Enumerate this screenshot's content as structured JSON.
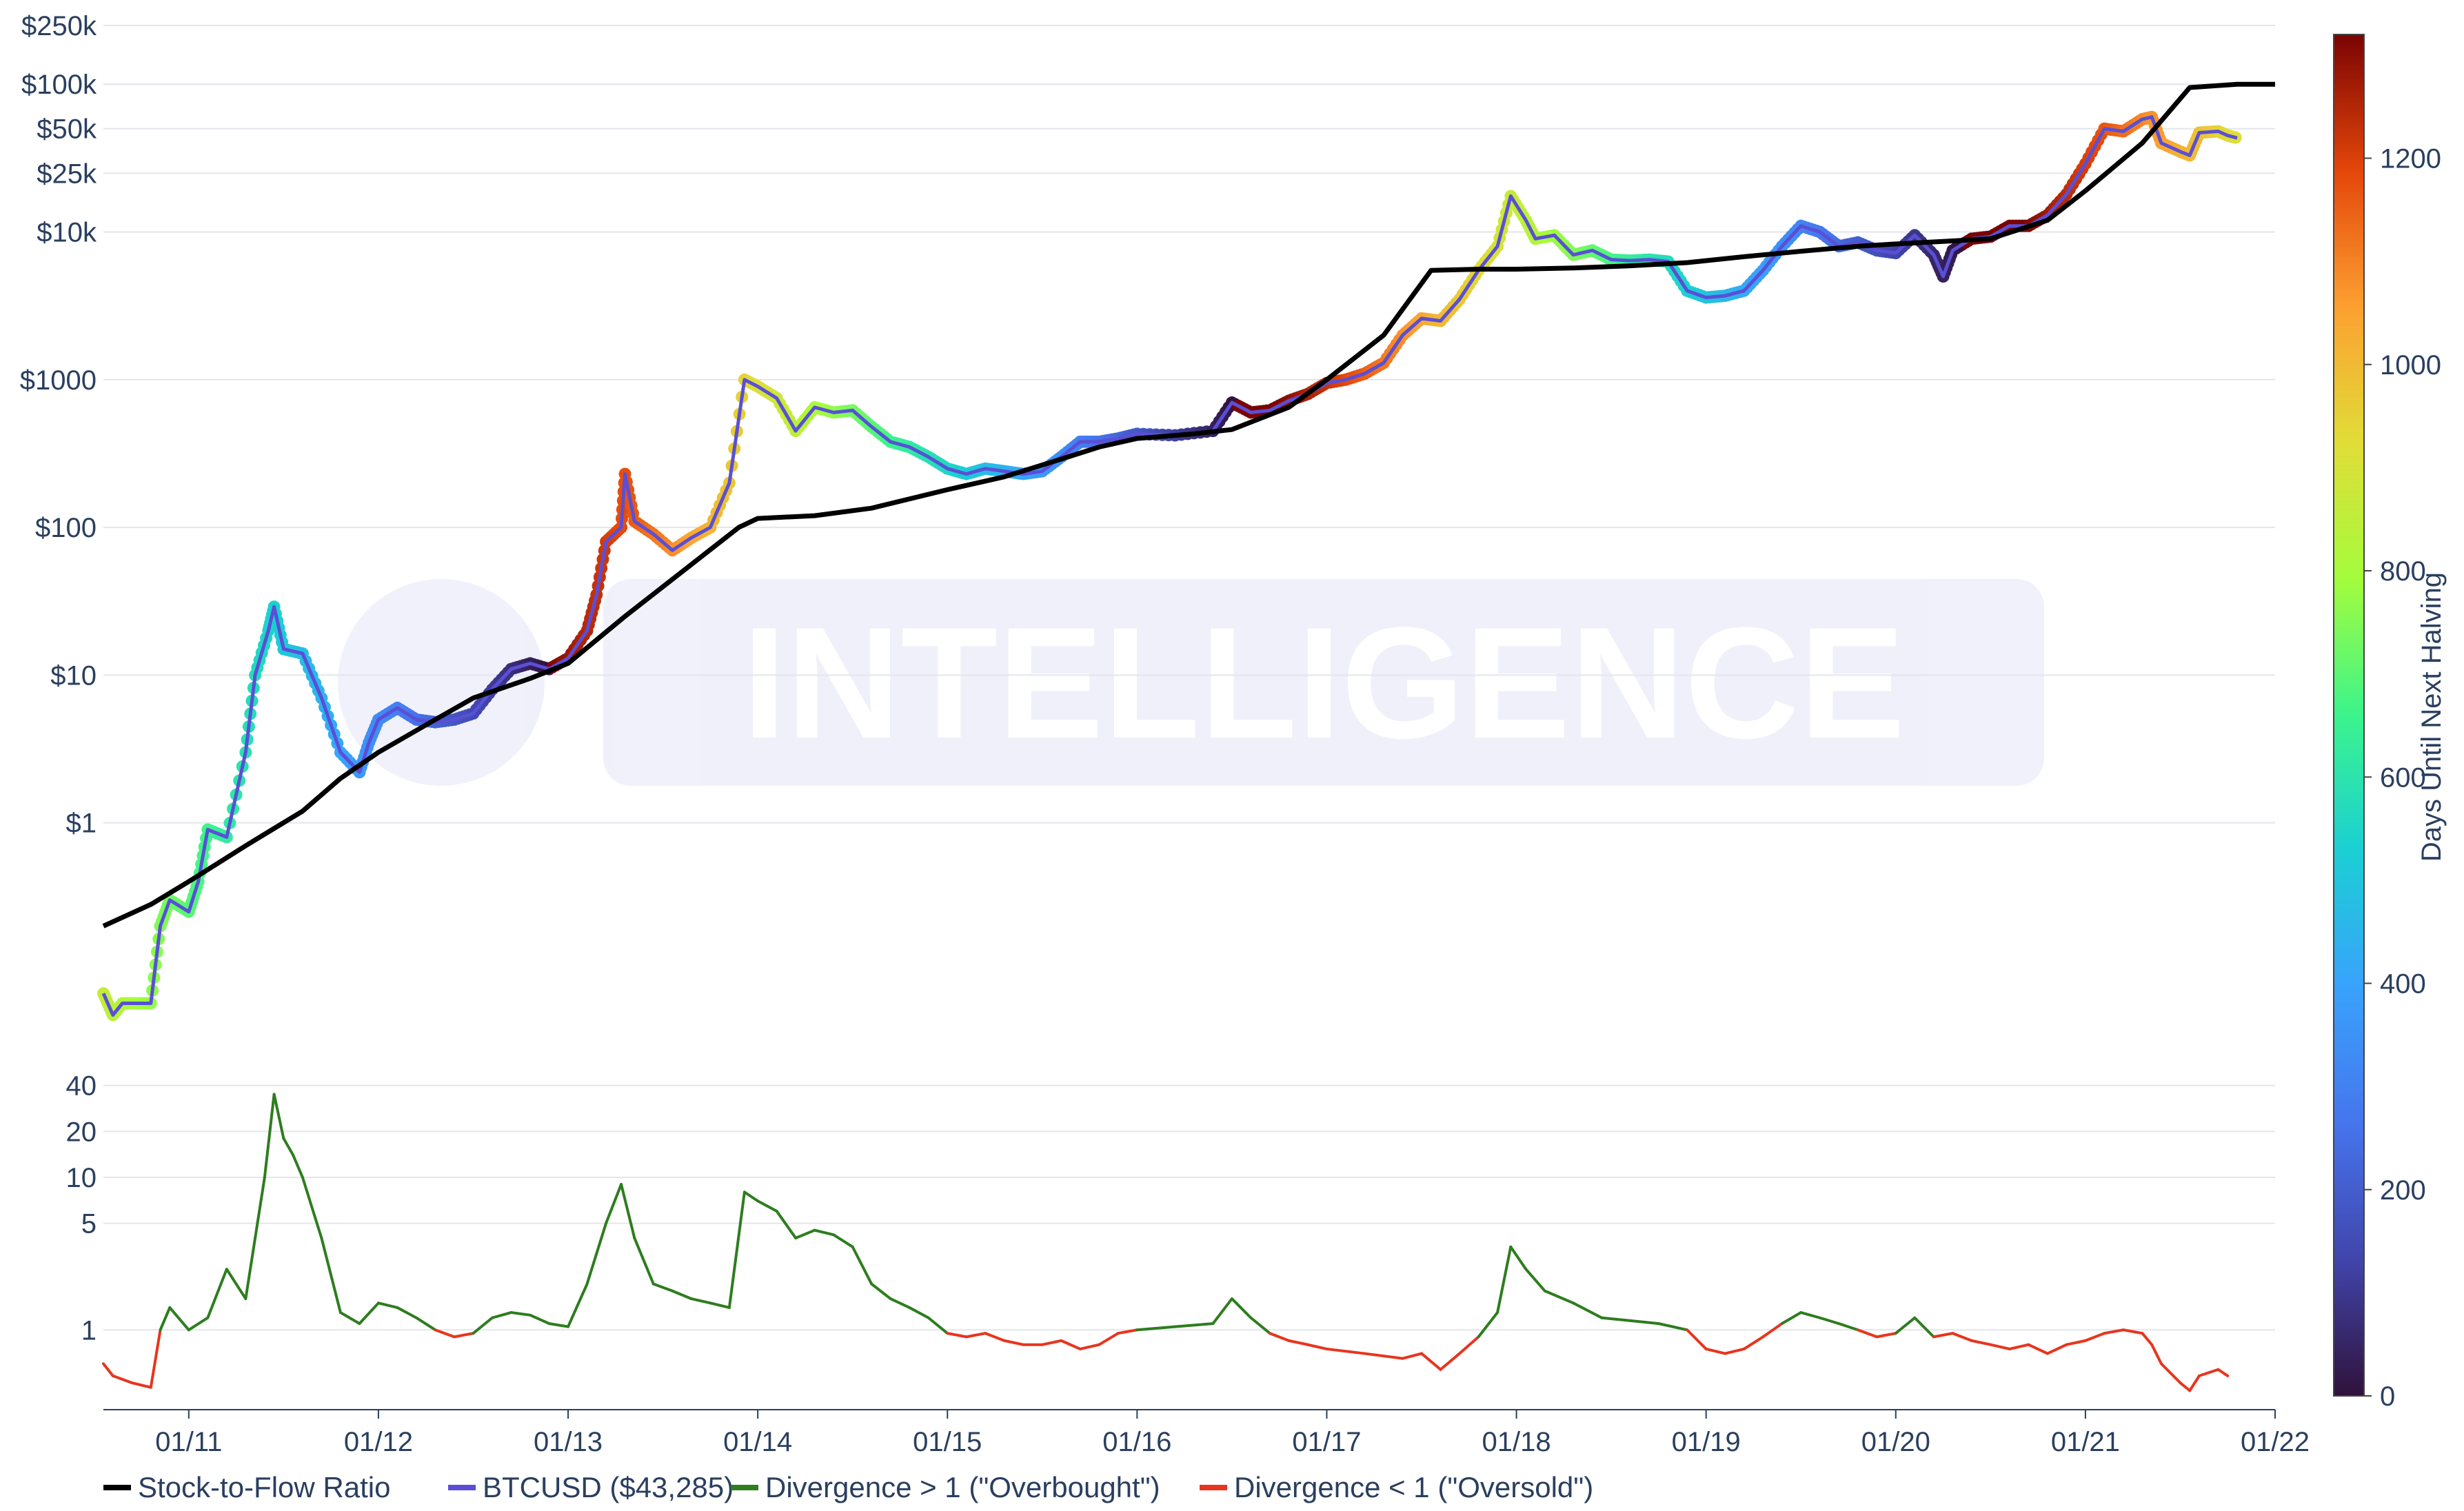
{
  "watermark": {
    "text": "INTELLIGENCE"
  },
  "legend": [
    {
      "label": "Stock-to-Flow Ratio",
      "color": "#000000"
    },
    {
      "label": "BTCUSD ($43,285)",
      "color": "#5a4fd6"
    },
    {
      "label": "Divergence > 1 (\"Overbought\")",
      "color": "#2e7d1f"
    },
    {
      "label": "Divergence < 1 (\"Oversold\")",
      "color": "#e8351e"
    }
  ],
  "chart_data": [
    {
      "type": "line",
      "panel": "price",
      "y_scale": "log",
      "ylim": [
        0.03,
        300000
      ],
      "y_ticks": [
        {
          "value": 1,
          "label": "$1"
        },
        {
          "value": 10,
          "label": "$10"
        },
        {
          "value": 100,
          "label": "$100"
        },
        {
          "value": 1000,
          "label": "$1000"
        },
        {
          "value": 10000,
          "label": "$10k"
        },
        {
          "value": 25000,
          "label": "$25k"
        },
        {
          "value": 50000,
          "label": "$50k"
        },
        {
          "value": 100000,
          "label": "$100k"
        },
        {
          "value": 250000,
          "label": "$250k"
        }
      ],
      "xlim": [
        2010.55,
        2022.0
      ],
      "grid": true,
      "series": [
        {
          "name": "Stock-to-Flow Ratio",
          "color": "#000000",
          "x": [
            2010.55,
            2010.8,
            2011.0,
            2011.3,
            2011.6,
            2011.8,
            2012.0,
            2012.3,
            2012.5,
            2012.8,
            2013.0,
            2013.3,
            2013.6,
            2013.9,
            2014.0,
            2014.3,
            2014.6,
            2015.0,
            2015.3,
            2015.6,
            2015.8,
            2016.0,
            2016.3,
            2016.5,
            2016.8,
            2017.0,
            2017.3,
            2017.55,
            2017.8,
            2018.0,
            2018.3,
            2018.6,
            2018.9,
            2019.2,
            2019.5,
            2019.8,
            2020.0,
            2020.3,
            2020.5,
            2020.8,
            2021.0,
            2021.3,
            2021.55,
            2021.8,
            2022.0
          ],
          "y": [
            0.2,
            0.28,
            0.4,
            0.7,
            1.2,
            2,
            3,
            5,
            7,
            9.5,
            12,
            25,
            50,
            100,
            115,
            120,
            135,
            180,
            220,
            290,
            350,
            400,
            430,
            460,
            650,
            1000,
            2000,
            5500,
            5600,
            5600,
            5700,
            5900,
            6200,
            6800,
            7400,
            8000,
            8300,
            8700,
            9000,
            12000,
            19000,
            40000,
            95000,
            100000,
            100000
          ]
        },
        {
          "name": "BTCUSD ($43,285)",
          "color_by": "Days Until Next Halving",
          "x": [
            2010.55,
            2010.6,
            2010.65,
            2010.7,
            2010.8,
            2010.85,
            2010.9,
            2011.0,
            2011.05,
            2011.1,
            2011.2,
            2011.3,
            2011.35,
            2011.42,
            2011.45,
            2011.5,
            2011.6,
            2011.7,
            2011.8,
            2011.9,
            2011.95,
            2012.0,
            2012.1,
            2012.2,
            2012.3,
            2012.4,
            2012.5,
            2012.6,
            2012.7,
            2012.8,
            2012.9,
            2013.0,
            2013.1,
            2013.15,
            2013.2,
            2013.28,
            2013.3,
            2013.35,
            2013.45,
            2013.55,
            2013.65,
            2013.75,
            2013.85,
            2013.93,
            2014.0,
            2014.1,
            2014.2,
            2014.3,
            2014.4,
            2014.5,
            2014.6,
            2014.7,
            2014.8,
            2014.9,
            2015.0,
            2015.1,
            2015.2,
            2015.3,
            2015.4,
            2015.5,
            2015.6,
            2015.7,
            2015.8,
            2015.9,
            2016.0,
            2016.2,
            2016.4,
            2016.5,
            2016.6,
            2016.7,
            2016.8,
            2016.9,
            2017.0,
            2017.1,
            2017.2,
            2017.3,
            2017.4,
            2017.5,
            2017.6,
            2017.7,
            2017.8,
            2017.9,
            2017.97,
            2018.05,
            2018.1,
            2018.2,
            2018.3,
            2018.4,
            2018.5,
            2018.6,
            2018.7,
            2018.8,
            2018.9,
            2019.0,
            2019.1,
            2019.2,
            2019.3,
            2019.4,
            2019.5,
            2019.6,
            2019.7,
            2019.8,
            2019.9,
            2020.0,
            2020.1,
            2020.2,
            2020.25,
            2020.3,
            2020.4,
            2020.5,
            2020.6,
            2020.7,
            2020.8,
            2020.9,
            2021.0,
            2021.1,
            2021.2,
            2021.3,
            2021.35,
            2021.4,
            2021.5,
            2021.55,
            2021.6,
            2021.7,
            2021.75,
            2021.8
          ],
          "y": [
            0.07,
            0.05,
            0.06,
            0.06,
            0.06,
            0.2,
            0.3,
            0.25,
            0.4,
            0.9,
            0.8,
            3,
            10,
            20,
            29,
            15,
            14,
            7,
            3,
            2.2,
            3.5,
            5,
            6,
            5,
            4.8,
            5,
            5.5,
            8,
            11,
            12,
            11,
            13,
            20,
            35,
            80,
            100,
            230,
            110,
            90,
            70,
            85,
            100,
            200,
            1000,
            900,
            750,
            450,
            650,
            600,
            620,
            480,
            380,
            350,
            300,
            250,
            230,
            250,
            240,
            230,
            240,
            300,
            380,
            380,
            400,
            430,
            420,
            450,
            700,
            600,
            620,
            720,
            800,
            950,
            1000,
            1100,
            1300,
            2000,
            2600,
            2500,
            3500,
            5500,
            8000,
            17500,
            12000,
            9000,
            9500,
            7000,
            7500,
            6500,
            6400,
            6500,
            6300,
            4000,
            3600,
            3700,
            4000,
            5500,
            8000,
            11000,
            10000,
            8000,
            8500,
            7500,
            7200,
            9500,
            7000,
            5000,
            7500,
            9000,
            9300,
            11000,
            11000,
            13000,
            18000,
            29000,
            50000,
            48000,
            58000,
            60000,
            40000,
            35000,
            33000,
            47000,
            48000,
            45000,
            43285
          ]
        }
      ]
    },
    {
      "type": "line",
      "panel": "divergence",
      "y_scale": "log",
      "ylim": [
        0.3,
        42
      ],
      "y_ticks": [
        {
          "value": 1,
          "label": "1"
        },
        {
          "value": 5,
          "label": "5"
        },
        {
          "value": 10,
          "label": "10"
        },
        {
          "value": 20,
          "label": "20"
        },
        {
          "value": 40,
          "label": "40"
        }
      ],
      "x_ticks": [
        {
          "value": 2011,
          "label": "01/11"
        },
        {
          "value": 2012,
          "label": "01/12"
        },
        {
          "value": 2013,
          "label": "01/13"
        },
        {
          "value": 2014,
          "label": "01/14"
        },
        {
          "value": 2015,
          "label": "01/15"
        },
        {
          "value": 2016,
          "label": "01/16"
        },
        {
          "value": 2017,
          "label": "01/17"
        },
        {
          "value": 2018,
          "label": "01/18"
        },
        {
          "value": 2019,
          "label": "01/19"
        },
        {
          "value": 2020,
          "label": "01/20"
        },
        {
          "value": 2021,
          "label": "01/21"
        },
        {
          "value": 2022,
          "label": "01/22"
        }
      ],
      "xlim": [
        2010.55,
        2022.0
      ],
      "grid": true,
      "threshold": 1,
      "above_color": "#2e7d1f",
      "below_color": "#e8351e",
      "x": [
        2010.55,
        2010.6,
        2010.7,
        2010.8,
        2010.85,
        2010.9,
        2011.0,
        2011.1,
        2011.2,
        2011.3,
        2011.35,
        2011.4,
        2011.45,
        2011.5,
        2011.55,
        2011.6,
        2011.7,
        2011.8,
        2011.9,
        2012.0,
        2012.1,
        2012.2,
        2012.3,
        2012.4,
        2012.5,
        2012.6,
        2012.7,
        2012.8,
        2012.9,
        2013.0,
        2013.1,
        2013.2,
        2013.28,
        2013.35,
        2013.45,
        2013.55,
        2013.65,
        2013.75,
        2013.85,
        2013.93,
        2014.0,
        2014.1,
        2014.2,
        2014.3,
        2014.4,
        2014.5,
        2014.6,
        2014.7,
        2014.8,
        2014.9,
        2015.0,
        2015.1,
        2015.2,
        2015.3,
        2015.4,
        2015.5,
        2015.6,
        2015.7,
        2015.8,
        2015.9,
        2016.0,
        2016.2,
        2016.4,
        2016.5,
        2016.6,
        2016.7,
        2016.8,
        2016.9,
        2017.0,
        2017.2,
        2017.4,
        2017.5,
        2017.6,
        2017.7,
        2017.8,
        2017.9,
        2017.97,
        2018.05,
        2018.15,
        2018.3,
        2018.45,
        2018.6,
        2018.75,
        2018.9,
        2019.0,
        2019.1,
        2019.2,
        2019.3,
        2019.4,
        2019.5,
        2019.6,
        2019.7,
        2019.8,
        2019.9,
        2020.0,
        2020.1,
        2020.2,
        2020.3,
        2020.4,
        2020.5,
        2020.6,
        2020.7,
        2020.8,
        2020.9,
        2021.0,
        2021.1,
        2021.2,
        2021.3,
        2021.35,
        2021.4,
        2021.5,
        2021.55,
        2021.6,
        2021.7,
        2021.75
      ],
      "y": [
        0.6,
        0.5,
        0.45,
        0.42,
        1.0,
        1.4,
        1.0,
        1.2,
        2.5,
        1.6,
        4.0,
        10,
        35,
        18,
        14,
        10,
        4,
        1.3,
        1.1,
        1.5,
        1.4,
        1.2,
        1.0,
        0.9,
        0.95,
        1.2,
        1.3,
        1.25,
        1.1,
        1.05,
        2.0,
        5.0,
        9.0,
        4.0,
        2.0,
        1.8,
        1.6,
        1.5,
        1.4,
        8.0,
        7.0,
        6.0,
        4.0,
        4.5,
        4.2,
        3.5,
        2.0,
        1.6,
        1.4,
        1.2,
        0.95,
        0.9,
        0.95,
        0.85,
        0.8,
        0.8,
        0.85,
        0.75,
        0.8,
        0.95,
        1.0,
        1.05,
        1.1,
        1.6,
        1.2,
        0.95,
        0.85,
        0.8,
        0.75,
        0.7,
        0.65,
        0.7,
        0.55,
        0.7,
        0.9,
        1.3,
        3.5,
        2.5,
        1.8,
        1.5,
        1.2,
        1.15,
        1.1,
        1.0,
        0.75,
        0.7,
        0.75,
        0.9,
        1.1,
        1.3,
        1.2,
        1.1,
        1.0,
        0.9,
        0.95,
        1.2,
        0.9,
        0.95,
        0.85,
        0.8,
        0.75,
        0.8,
        0.7,
        0.8,
        0.85,
        0.95,
        1.0,
        0.95,
        0.8,
        0.6,
        0.45,
        0.4,
        0.5,
        0.55,
        0.5
      ]
    }
  ],
  "colorbar": {
    "title": "Days Until Next Halving",
    "min": 0,
    "max": 1320,
    "ticks": [
      0,
      200,
      400,
      600,
      800,
      1000,
      1200
    ]
  }
}
